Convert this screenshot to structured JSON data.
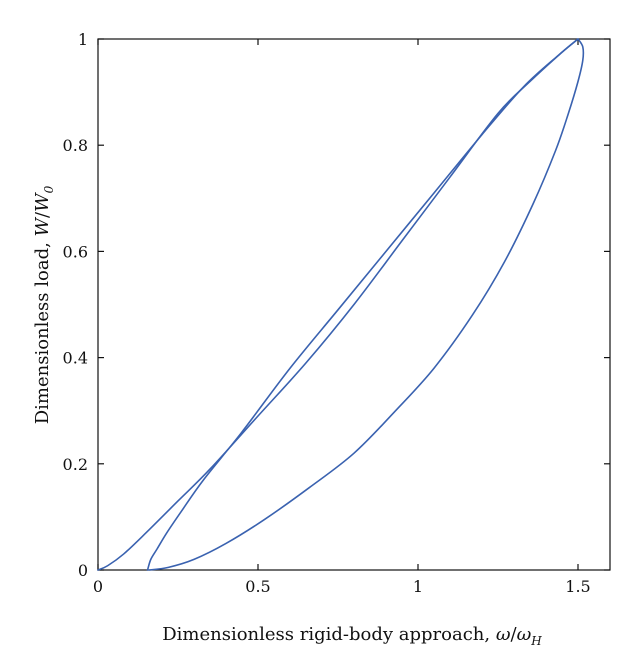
{
  "chart_data": {
    "type": "line",
    "title": "",
    "xlabel": {
      "text": "Dimensionless rigid-body approach, ",
      "symbol": "ω",
      "slash": "/",
      "symbol2": "ω",
      "subscript": "H"
    },
    "ylabel": {
      "text": "Dimensionless load, ",
      "symbol": "W",
      "slash": "/",
      "symbol2": "W",
      "subscript": "0"
    },
    "xlim": [
      0,
      1.6
    ],
    "ylim": [
      0,
      1
    ],
    "xticks": [
      0,
      0.5,
      1,
      1.5
    ],
    "xtick_labels": [
      "0",
      "0.5",
      "1",
      "1.5"
    ],
    "yticks": [
      0,
      0.2,
      0.4,
      0.6,
      0.8,
      1
    ],
    "ytick_labels": [
      "0",
      "0.2",
      "0.4",
      "0.6",
      "0.8",
      "1"
    ],
    "grid": false,
    "series": [
      {
        "color": "#3a62b0",
        "x": [
          0,
          0.03,
          0.08,
          0.15,
          0.25,
          0.35,
          0.5,
          0.65,
          0.8,
          0.95,
          1.1,
          1.25,
          1.35,
          1.45,
          1.5
        ],
        "y": [
          0,
          0.008,
          0.03,
          0.07,
          0.13,
          0.19,
          0.29,
          0.39,
          0.5,
          0.62,
          0.74,
          0.86,
          0.92,
          0.975,
          1.0
        ]
      },
      {
        "color": "#3a62b0",
        "x": [
          0.155,
          0.165,
          0.185,
          0.215,
          0.26,
          0.33,
          0.45,
          0.6,
          0.75,
          0.9,
          1.05,
          1.2,
          1.33,
          1.44,
          1.5
        ],
        "y": [
          0,
          0.02,
          0.04,
          0.07,
          0.11,
          0.17,
          0.26,
          0.38,
          0.49,
          0.6,
          0.71,
          0.82,
          0.91,
          0.97,
          1.0
        ]
      },
      {
        "color": "#3a62b0",
        "x": [
          1.5,
          1.515,
          1.515,
          1.5,
          1.47,
          1.43,
          1.36,
          1.27,
          1.17,
          1.05,
          0.93,
          0.8,
          0.66,
          0.52,
          0.4,
          0.3,
          0.22,
          0.16
        ],
        "y": [
          1.0,
          0.985,
          0.96,
          0.92,
          0.86,
          0.79,
          0.69,
          0.58,
          0.48,
          0.38,
          0.3,
          0.22,
          0.155,
          0.095,
          0.05,
          0.02,
          0.005,
          0
        ]
      }
    ]
  }
}
